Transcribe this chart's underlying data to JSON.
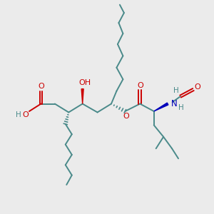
{
  "bg_color": "#ebebeb",
  "bond_color": "#4a8a8a",
  "bond_width": 1.4,
  "red_color": "#cc0000",
  "blue_color": "#0000bb",
  "figsize": [
    3.0,
    3.0
  ],
  "dpi": 100,
  "xlim": [
    0,
    10
  ],
  "ylim": [
    0,
    10
  ]
}
